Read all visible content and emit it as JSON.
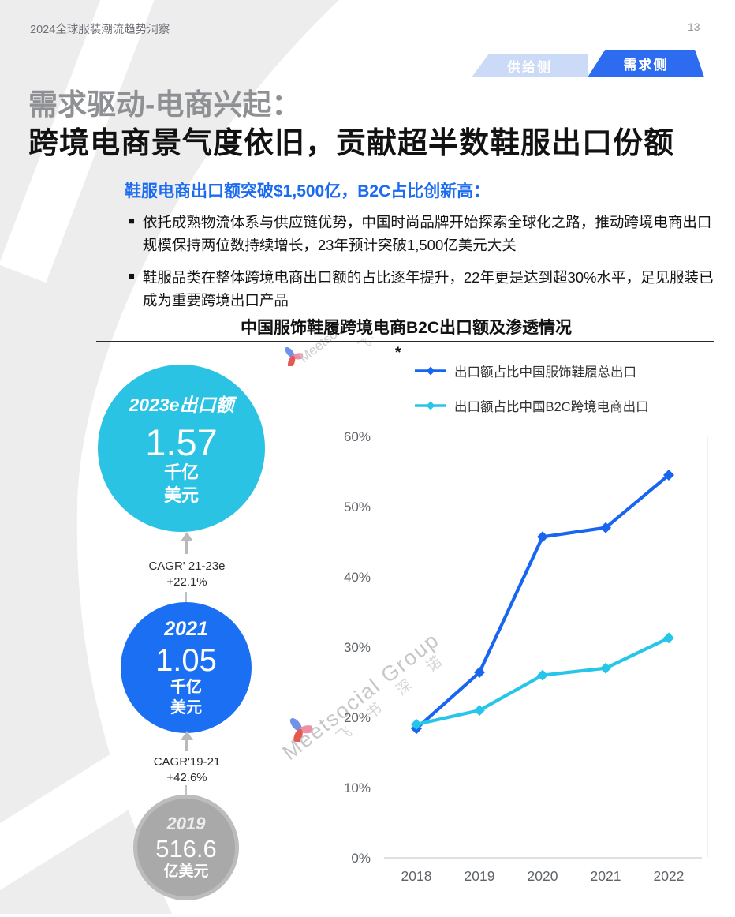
{
  "page": {
    "header_title": "2024全球服装潮流趋势洞察",
    "page_number": "13"
  },
  "tabs": {
    "supply_label": "供给侧",
    "demand_label": "需求侧",
    "active": "需求侧",
    "active_color": "#2D6BF0",
    "inactive_color": "#CBDAF7"
  },
  "heading": {
    "line1": "需求驱动-电商兴起：",
    "line2": "跨境电商景气度依旧，贡献超半数鞋服出口份额"
  },
  "intro": {
    "subtitle": "鞋服电商出口额突破$1,500亿，B2C占比创新高：",
    "subtitle_color": "#1A6BF0",
    "bullets": [
      "依托成熟物流体系与供应链优势，中国时尚品牌开始探索全球化之路，推动跨境电商出口规模保持两位数持续增长，23年预计突破1,500亿美元大关",
      "鞋服品类在整体跨境电商出口额的占比逐年提升，22年更是达到超30%水平，足见服装已成为重要跨境出口产品"
    ]
  },
  "chart_section": {
    "title": "中国服饰鞋履跨境电商B2C出口额及渗透情况",
    "footnote_marker": "*"
  },
  "stat_circles": [
    {
      "period": "2023e出口额",
      "value": "1.57",
      "unit_lines": [
        "千亿",
        "美元"
      ],
      "color": "#2BC3E4"
    },
    {
      "period": "2021",
      "value": "1.05",
      "unit_lines": [
        "千亿",
        "美元"
      ],
      "color": "#1B6FF2"
    },
    {
      "period": "2019",
      "value": "516.6",
      "unit_lines": [
        "亿美元"
      ],
      "color": "#A9A9A9"
    }
  ],
  "cagr_notes": [
    {
      "range": "CAGR' 21-23e",
      "value": "+22.1%"
    },
    {
      "range": "CAGR'19-21",
      "value": "+42.6%"
    }
  ],
  "watermark": {
    "brand": "Meetsocial Group",
    "brand_cn": "飞 书 深 诺"
  },
  "chart_data": {
    "type": "line",
    "title": "中国服饰鞋履跨境电商B2C出口额及渗透情况",
    "categories": [
      "2018",
      "2019",
      "2020",
      "2021",
      "2022"
    ],
    "series": [
      {
        "name": "出口额占比中国服饰鞋履总出口",
        "color": "#1866F0",
        "values": [
          18.4,
          26.4,
          45.7,
          47.0,
          54.5
        ]
      },
      {
        "name": "出口额占比中国B2C跨境电商出口",
        "color": "#27C6E8",
        "values": [
          19.0,
          21.0,
          26.0,
          27.0,
          31.3
        ]
      }
    ],
    "xlabel": "",
    "ylabel": "",
    "ylim": [
      0,
      60
    ],
    "yticks": [
      0,
      10,
      20,
      30,
      40,
      50,
      60
    ],
    "y_tick_suffix": "%",
    "grid": false,
    "legend_position": "top-right",
    "marker": "diamond"
  }
}
